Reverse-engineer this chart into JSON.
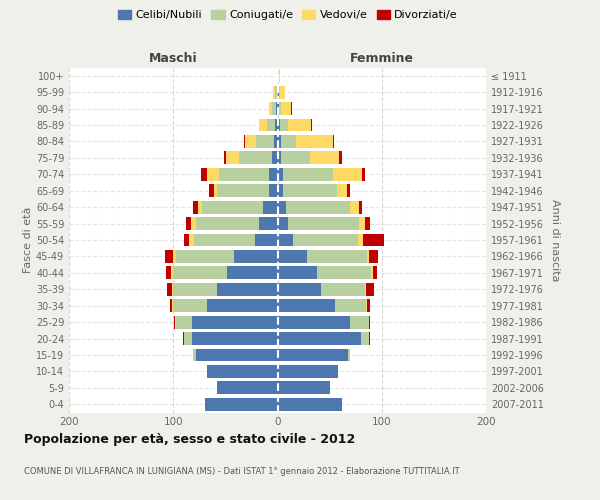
{
  "age_groups": [
    "0-4",
    "5-9",
    "10-14",
    "15-19",
    "20-24",
    "25-29",
    "30-34",
    "35-39",
    "40-44",
    "45-49",
    "50-54",
    "55-59",
    "60-64",
    "65-69",
    "70-74",
    "75-79",
    "80-84",
    "85-89",
    "90-94",
    "95-99",
    "100+"
  ],
  "birth_years": [
    "2007-2011",
    "2002-2006",
    "1997-2001",
    "1992-1996",
    "1987-1991",
    "1982-1986",
    "1977-1981",
    "1972-1976",
    "1967-1971",
    "1962-1966",
    "1957-1961",
    "1952-1956",
    "1947-1951",
    "1942-1946",
    "1937-1941",
    "1932-1936",
    "1927-1931",
    "1922-1926",
    "1917-1921",
    "1912-1916",
    "≤ 1911"
  ],
  "colors": {
    "celibi": "#4e77b0",
    "coniugati": "#b8cfa0",
    "vedovi": "#ffd966",
    "divorziati": "#c00000"
  },
  "maschi": {
    "celibi": [
      70,
      58,
      68,
      78,
      82,
      82,
      68,
      58,
      48,
      42,
      22,
      18,
      14,
      8,
      8,
      5,
      3,
      2,
      1,
      0,
      0
    ],
    "coniugati": [
      0,
      0,
      0,
      3,
      8,
      15,
      32,
      42,
      52,
      55,
      58,
      60,
      58,
      50,
      48,
      32,
      18,
      8,
      4,
      2,
      0
    ],
    "vedovi": [
      0,
      0,
      0,
      0,
      0,
      1,
      1,
      1,
      2,
      3,
      5,
      5,
      4,
      3,
      12,
      12,
      10,
      8,
      3,
      2,
      0
    ],
    "divorziati": [
      0,
      0,
      0,
      0,
      1,
      1,
      2,
      5,
      5,
      8,
      5,
      5,
      5,
      5,
      5,
      2,
      1,
      0,
      0,
      0,
      0
    ]
  },
  "femmine": {
    "celibi": [
      62,
      50,
      58,
      68,
      80,
      70,
      55,
      42,
      38,
      28,
      15,
      10,
      8,
      5,
      5,
      3,
      3,
      2,
      1,
      1,
      0
    ],
    "coniugati": [
      0,
      0,
      0,
      2,
      8,
      18,
      30,
      42,
      52,
      58,
      62,
      68,
      62,
      52,
      48,
      28,
      15,
      8,
      2,
      1,
      0
    ],
    "vedovi": [
      0,
      0,
      0,
      0,
      0,
      0,
      1,
      1,
      2,
      2,
      5,
      6,
      8,
      10,
      28,
      28,
      35,
      22,
      10,
      5,
      2
    ],
    "divorziati": [
      0,
      0,
      0,
      0,
      1,
      1,
      3,
      8,
      3,
      8,
      20,
      5,
      3,
      3,
      3,
      3,
      1,
      1,
      1,
      0,
      0
    ]
  },
  "xlim": 200,
  "title": "Popolazione per età, sesso e stato civile - 2012",
  "subtitle": "COMUNE DI VILLAFRANCA IN LUNIGIANA (MS) - Dati ISTAT 1° gennaio 2012 - Elaborazione TUTTITALIA.IT",
  "ylabel": "Fasce di età",
  "ylabel_right": "Anni di nascita",
  "maschi_label": "Maschi",
  "femmine_label": "Femmine",
  "legend_labels": [
    "Celibi/Nubili",
    "Coniugati/e",
    "Vedovi/e",
    "Divorziati/e"
  ],
  "bg_color": "#f0f0eb",
  "bar_bg": "#ffffff"
}
